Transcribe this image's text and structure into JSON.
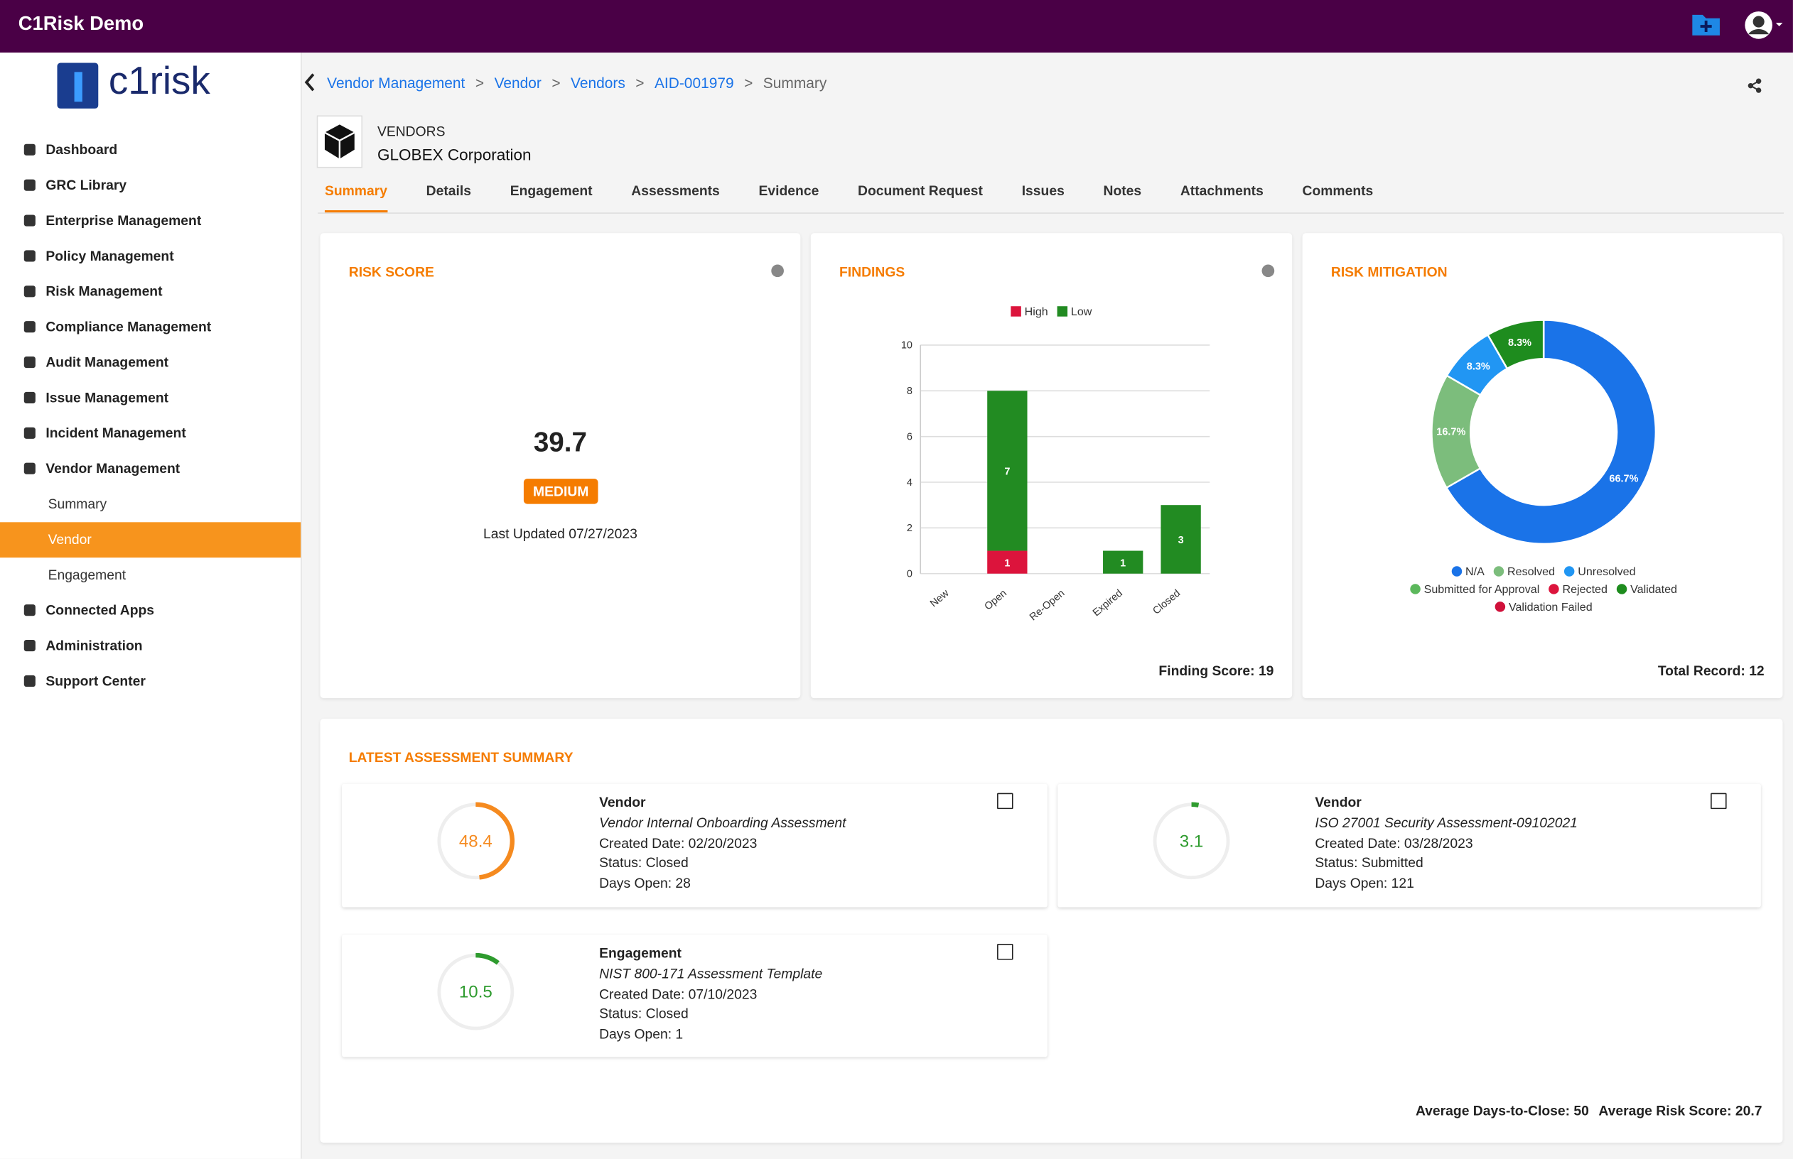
{
  "app_title": "C1Risk Demo",
  "logo_text": "c1risk",
  "sidebar": [
    {
      "label": "Dashboard"
    },
    {
      "label": "GRC Library"
    },
    {
      "label": "Enterprise Management"
    },
    {
      "label": "Policy Management"
    },
    {
      "label": "Risk Management"
    },
    {
      "label": "Compliance Management"
    },
    {
      "label": "Audit Management"
    },
    {
      "label": "Issue Management"
    },
    {
      "label": "Incident Management"
    },
    {
      "label": "Vendor Management",
      "children": [
        "Summary",
        "Vendor",
        "Engagement"
      ]
    },
    {
      "label": "Connected Apps"
    },
    {
      "label": "Administration"
    },
    {
      "label": "Support Center"
    }
  ],
  "breadcrumb": [
    "Vendor Management",
    "Vendor",
    "Vendors",
    "AID-001979",
    "Summary"
  ],
  "header": {
    "label": "VENDORS",
    "name": "GLOBEX Corporation"
  },
  "tabs": [
    "Summary",
    "Details",
    "Engagement",
    "Assessments",
    "Evidence",
    "Document Request",
    "Issues",
    "Notes",
    "Attachments",
    "Comments"
  ],
  "risk_score": {
    "title": "RISK SCORE",
    "score": 39.7,
    "level": "MEDIUM",
    "updated": "Last Updated 07/27/2023"
  },
  "findings": {
    "title": "FINDINGS",
    "footer": "Finding Score: 19",
    "chart": {
      "type": "bar",
      "stacked": true,
      "categories": [
        "New",
        "Open",
        "Re-Open",
        "Expired",
        "Closed"
      ],
      "series": [
        {
          "name": "High",
          "color": "#dc143c",
          "values": [
            0,
            1,
            0,
            0,
            0
          ]
        },
        {
          "name": "Low",
          "color": "#228b22",
          "values": [
            0,
            7,
            0,
            1,
            3
          ]
        }
      ],
      "ylim": [
        0,
        10
      ],
      "yticks": [
        0,
        2,
        4,
        6,
        8,
        10
      ],
      "grid": true
    }
  },
  "mitigation": {
    "title": "RISK MITIGATION",
    "footer": "Total Record: 12",
    "chart": {
      "type": "donut",
      "categories": [
        "N/A",
        "Resolved",
        "Unresolved",
        "Submitted for Approval",
        "Rejected",
        "Validated",
        "Validation Failed"
      ],
      "colors": [
        "#1a73e8",
        "#7cbd7c",
        "#2196f3",
        "#5cb85c",
        "#dc143c",
        "#1e8c1e",
        "#d0103a"
      ],
      "values": [
        66.7,
        16.7,
        8.3,
        0,
        0,
        8.3,
        0
      ],
      "value_labels": [
        "66.7%",
        "16.7%",
        "8.3%",
        null,
        null,
        "8.3%",
        null
      ]
    }
  },
  "assessment": {
    "title": "LATEST ASSESSMENT SUMMARY",
    "range": [
      0,
      100
    ],
    "cards": [
      {
        "score": 48.4,
        "color": "#f58a1f",
        "type": "Vendor",
        "name": "Vendor Internal Onboarding Assessment",
        "created": "Created Date: 02/20/2023",
        "status": "Status: Closed",
        "days": "Days Open: 28"
      },
      {
        "score": 3.1,
        "color": "#2e9b2e",
        "type": "Vendor",
        "name": "ISO 27001 Security Assessment-09102021",
        "created": "Created Date: 03/28/2023",
        "status": "Status: Submitted",
        "days": "Days Open: 121"
      },
      {
        "score": 10.5,
        "color": "#2e9b2e",
        "type": "Engagement",
        "name": "NIST 800-171 Assessment Template",
        "created": "Created Date: 07/10/2023",
        "status": "Status: Closed",
        "days": "Days Open: 1"
      }
    ],
    "avg_days": "Average Days-to-Close: 50",
    "avg_risk": "Average Risk Score: 20.7"
  }
}
